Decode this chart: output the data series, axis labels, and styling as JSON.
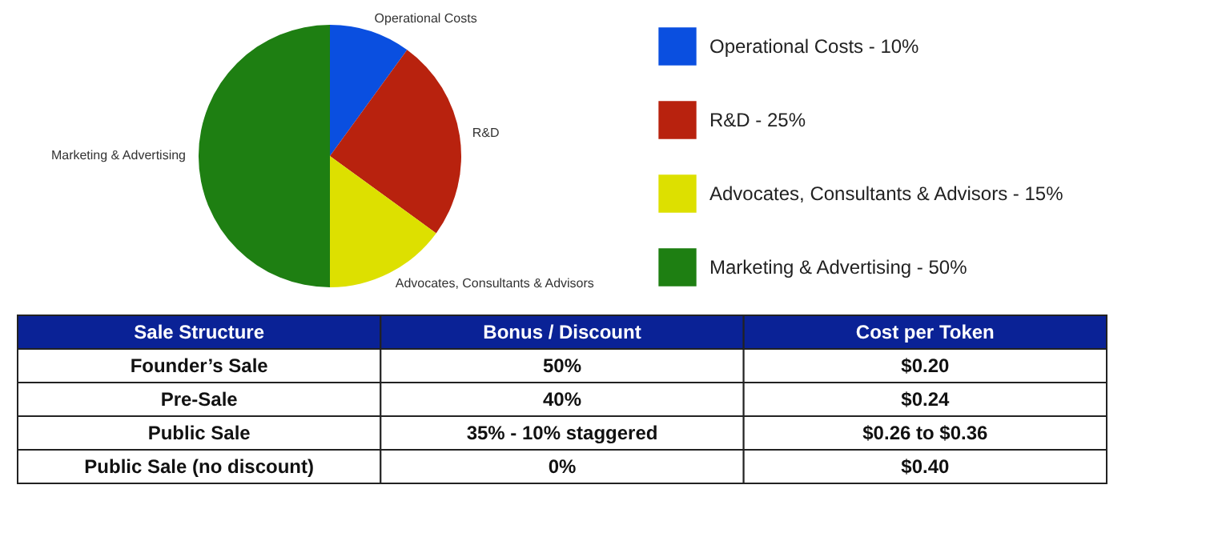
{
  "chart_data": [
    {
      "type": "pie",
      "categories": [
        "Operational Costs  - 10%",
        "R&D - 25%",
        "Advocates, Consultants & Advisors - 15%",
        "Marketing & Advertising - 50%"
      ],
      "values": [
        10,
        25,
        15,
        50
      ],
      "colors": [
        "#0a4fe0",
        "#b8220e",
        "#dde000",
        "#1e7f12"
      ],
      "annotations": [
        "Operational Costs",
        "R&D",
        "Advocates, Consultants & Advisors",
        "Marketing & Advertising"
      ],
      "legend": "right"
    },
    {
      "type": "other",
      "ylabel": "Sale Structure",
      "color": "#0a2296",
      "categories": [
        "Bonus / Discount",
        "Cost per Token"
      ],
      "y_categories": [
        "Founder’s Sale",
        "Pre-Sale",
        "Public Sale",
        "Public Sale (no discount)"
      ],
      "cell_labels": [
        [
          "50%",
          "$0.20"
        ],
        [
          "40%",
          "$0.24"
        ],
        [
          "35% - 10% staggered",
          "$0.26 to $0.36"
        ],
        [
          "0%",
          "$0.40"
        ]
      ]
    }
  ]
}
